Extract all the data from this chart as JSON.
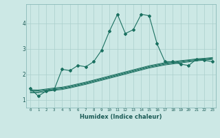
{
  "xlabel": "Humidex (Indice chaleur)",
  "background_color": "#cce8e5",
  "grid_color": "#aacfcc",
  "line_color": "#1a7060",
  "xlim": [
    -0.5,
    23.4
  ],
  "ylim": [
    0.7,
    4.75
  ],
  "xticks": [
    0,
    1,
    2,
    3,
    4,
    5,
    6,
    7,
    8,
    9,
    10,
    11,
    12,
    13,
    14,
    15,
    16,
    17,
    18,
    19,
    20,
    21,
    22,
    23
  ],
  "yticks": [
    1,
    2,
    3,
    4
  ],
  "main_line": {
    "x": [
      0,
      1,
      2,
      3,
      4,
      5,
      6,
      7,
      8,
      9,
      10,
      11,
      12,
      13,
      14,
      15,
      16,
      17,
      18,
      19,
      20,
      21,
      22,
      23
    ],
    "y": [
      1.45,
      1.15,
      1.35,
      1.4,
      2.2,
      2.15,
      2.35,
      2.3,
      2.5,
      2.95,
      3.7,
      4.35,
      3.6,
      3.75,
      4.35,
      4.3,
      3.2,
      2.5,
      2.5,
      2.4,
      2.35,
      2.6,
      2.55,
      2.5
    ]
  },
  "band_lines": [
    {
      "x": [
        0,
        1,
        2,
        3,
        4,
        5,
        6,
        7,
        8,
        9,
        10,
        11,
        12,
        13,
        14,
        15,
        16,
        17,
        18,
        19,
        20,
        21,
        22,
        23
      ],
      "y": [
        1.28,
        1.28,
        1.33,
        1.38,
        1.41,
        1.47,
        1.54,
        1.61,
        1.69,
        1.77,
        1.85,
        1.93,
        2.01,
        2.09,
        2.17,
        2.25,
        2.31,
        2.37,
        2.41,
        2.45,
        2.49,
        2.53,
        2.56,
        2.59
      ]
    },
    {
      "x": [
        0,
        1,
        2,
        3,
        4,
        5,
        6,
        7,
        8,
        9,
        10,
        11,
        12,
        13,
        14,
        15,
        16,
        17,
        18,
        19,
        20,
        21,
        22,
        23
      ],
      "y": [
        1.32,
        1.32,
        1.37,
        1.41,
        1.44,
        1.5,
        1.57,
        1.64,
        1.72,
        1.8,
        1.88,
        1.96,
        2.04,
        2.12,
        2.2,
        2.28,
        2.34,
        2.4,
        2.44,
        2.48,
        2.52,
        2.55,
        2.58,
        2.61
      ]
    },
    {
      "x": [
        0,
        1,
        2,
        3,
        4,
        5,
        6,
        7,
        8,
        9,
        10,
        11,
        12,
        13,
        14,
        15,
        16,
        17,
        18,
        19,
        20,
        21,
        22,
        23
      ],
      "y": [
        1.36,
        1.36,
        1.4,
        1.44,
        1.47,
        1.53,
        1.6,
        1.67,
        1.75,
        1.83,
        1.91,
        1.99,
        2.07,
        2.15,
        2.23,
        2.31,
        2.37,
        2.43,
        2.47,
        2.51,
        2.55,
        2.58,
        2.61,
        2.64
      ]
    },
    {
      "x": [
        0,
        1,
        2,
        3,
        4,
        5,
        6,
        7,
        8,
        9,
        10,
        11,
        12,
        13,
        14,
        15,
        16,
        17,
        18,
        19,
        20,
        21,
        22,
        23
      ],
      "y": [
        1.4,
        1.39,
        1.43,
        1.47,
        1.5,
        1.56,
        1.63,
        1.7,
        1.78,
        1.86,
        1.94,
        2.02,
        2.1,
        2.18,
        2.26,
        2.34,
        2.4,
        2.46,
        2.5,
        2.54,
        2.57,
        2.61,
        2.63,
        2.66
      ]
    }
  ]
}
